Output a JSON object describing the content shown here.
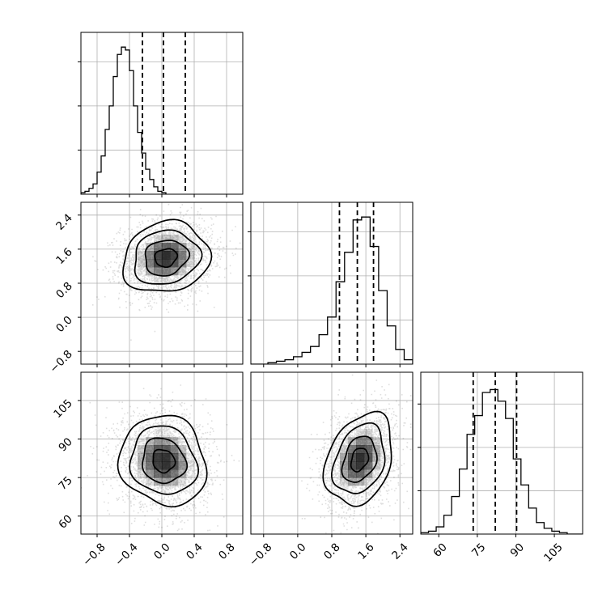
{
  "chart_data": {
    "type": "corner",
    "params": [
      {
        "range": [
          -1.0,
          1.0
        ],
        "ticks": [
          -0.8,
          -0.4,
          0.0,
          0.4,
          0.8
        ],
        "tick_labels": [
          "−0.8",
          "−0.4",
          "0.0",
          "0.4",
          "0.8"
        ]
      },
      {
        "range": [
          -1.1,
          2.7
        ],
        "ticks": [
          -0.8,
          0.0,
          0.8,
          1.6,
          2.4
        ],
        "tick_labels": [
          "−0.8",
          "0.0",
          "0.8",
          "1.6",
          "2.4"
        ]
      },
      {
        "range": [
          53.0,
          116.0
        ],
        "ticks": [
          60,
          75,
          90,
          105
        ],
        "tick_labels": [
          "60",
          "75",
          "90",
          "105"
        ]
      }
    ],
    "histograms": [
      {
        "param": 0,
        "bins_start": -1.0,
        "bin_width": 0.05,
        "ymax": 1.1,
        "counts": [
          0.01,
          0.02,
          0.04,
          0.07,
          0.15,
          0.26,
          0.44,
          0.6,
          0.8,
          0.95,
          1.0,
          0.98,
          0.84,
          0.6,
          0.42,
          0.28,
          0.17,
          0.1,
          0.05,
          0.02,
          0.01
        ],
        "quantiles": [
          -0.24,
          0.02,
          0.29
        ]
      },
      {
        "param": 1,
        "bins_start": -1.1,
        "bin_width": 0.2,
        "ymax": 1.1,
        "counts": [
          0.0,
          0.0,
          0.01,
          0.02,
          0.03,
          0.05,
          0.08,
          0.12,
          0.2,
          0.32,
          0.56,
          0.76,
          0.98,
          1.0,
          0.8,
          0.5,
          0.26,
          0.1,
          0.03
        ],
        "quantiles": [
          0.98,
          1.4,
          1.78
        ]
      },
      {
        "param": 2,
        "bins_start": 53.0,
        "bin_width": 3.0,
        "ymax": 1.12,
        "counts": [
          0.01,
          0.02,
          0.05,
          0.13,
          0.26,
          0.45,
          0.69,
          0.82,
          0.98,
          1.0,
          0.92,
          0.8,
          0.52,
          0.34,
          0.18,
          0.08,
          0.04,
          0.02,
          0.01,
          0.0,
          0.0
        ],
        "quantiles": [
          73.4,
          82.0,
          90.3
        ]
      }
    ],
    "joint": [
      {
        "x_param": 0,
        "y_param": 1,
        "center": [
          0.05,
          1.4
        ],
        "sd": [
          0.27,
          0.42
        ],
        "rho": 0.12,
        "contour_levels": [
          0.12,
          0.39,
          0.68,
          0.86
        ]
      },
      {
        "x_param": 0,
        "y_param": 2,
        "center": [
          0.02,
          81.5
        ],
        "sd": [
          0.27,
          8.8
        ],
        "rho": -0.1,
        "contour_levels": [
          0.12,
          0.39,
          0.68,
          0.86
        ]
      },
      {
        "x_param": 1,
        "y_param": 2,
        "center": [
          1.45,
          82.0
        ],
        "sd": [
          0.4,
          9.0
        ],
        "rho": 0.28,
        "contour_levels": [
          0.12,
          0.39,
          0.68,
          0.86
        ]
      }
    ]
  }
}
